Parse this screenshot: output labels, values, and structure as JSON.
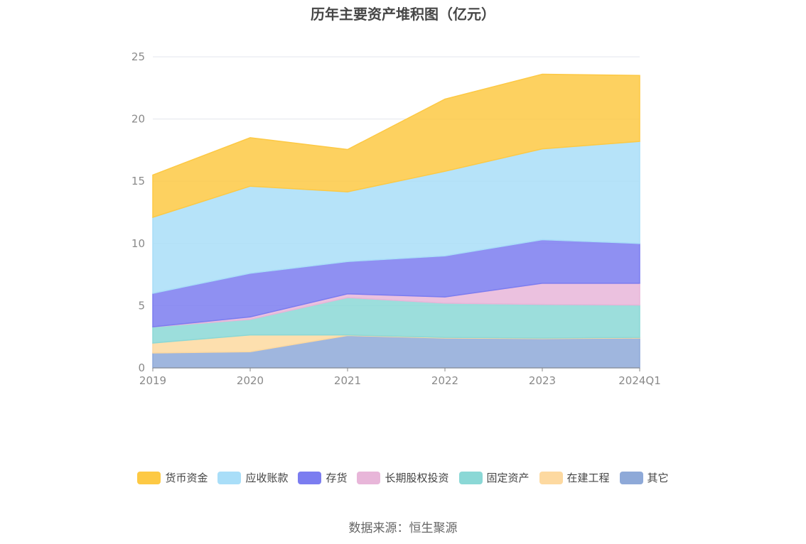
{
  "title": "历年主要资产堆积图（亿元）",
  "source": "数据来源：恒生聚源",
  "chart_data": {
    "type": "area",
    "stacked": true,
    "categories": [
      "2019",
      "2020",
      "2021",
      "2022",
      "2023",
      "2024Q1"
    ],
    "ylim": [
      0,
      25
    ],
    "yticks": [
      0,
      5,
      10,
      15,
      20,
      25
    ],
    "grid": true,
    "legend_position": "bottom",
    "series": [
      {
        "name": "其它",
        "color": "#8ea9d8",
        "values": [
          1.2,
          1.3,
          2.6,
          2.4,
          2.35,
          2.4
        ]
      },
      {
        "name": "在建工程",
        "color": "#fdd9a0",
        "values": [
          0.8,
          1.35,
          0.05,
          0.05,
          0.05,
          0.05
        ]
      },
      {
        "name": "固定资产",
        "color": "#8bd8d6",
        "values": [
          1.3,
          1.25,
          3.0,
          2.75,
          2.7,
          2.6
        ]
      },
      {
        "name": "长期股权投资",
        "color": "#e8b6d9",
        "values": [
          0.0,
          0.2,
          0.3,
          0.5,
          1.7,
          1.75
        ]
      },
      {
        "name": "存货",
        "color": "#7b7df0",
        "values": [
          2.7,
          3.5,
          2.6,
          3.3,
          3.5,
          3.2
        ]
      },
      {
        "name": "应收账款",
        "color": "#a9def8",
        "values": [
          6.1,
          7.0,
          5.6,
          6.8,
          7.3,
          8.2
        ]
      },
      {
        "name": "货币资金",
        "color": "#fdc944",
        "values": [
          3.4,
          3.9,
          3.4,
          5.8,
          6.0,
          5.3
        ]
      }
    ],
    "legend_order": [
      "货币资金",
      "应收账款",
      "存货",
      "长期股权投资",
      "固定资产",
      "在建工程",
      "其它"
    ]
  }
}
